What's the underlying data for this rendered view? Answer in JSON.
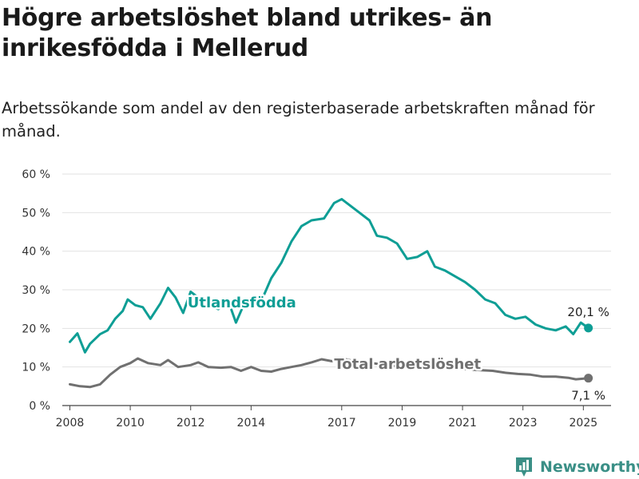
{
  "title": "Högre arbetslöshet bland utrikes- än inrikesfödda i Mellerud",
  "subtitle": "Arbetssökande som andel av den registerbaserade arbetskraften månad för månad.",
  "brand": {
    "name": "Newsworthy",
    "icon": "newsworthy-logo-icon",
    "color": "#3a8f86"
  },
  "chart_data": {
    "type": "line",
    "x_unit": "month",
    "xlim": [
      "2007-10",
      "2025-12"
    ],
    "ylim": [
      0,
      60
    ],
    "grid": "horizontal",
    "legend": "inline-labels",
    "yticks": [
      "0 %",
      "10 %",
      "20 %",
      "30 %",
      "40 %",
      "50 %",
      "60 %"
    ],
    "xticks": [
      "2008",
      "2010",
      "2012",
      "2014",
      "2017",
      "2019",
      "2021",
      "2023",
      "2025"
    ],
    "xtick_dates": [
      "2008-01",
      "2010-01",
      "2012-01",
      "2014-01",
      "2017-01",
      "2019-01",
      "2021-01",
      "2023-01",
      "2025-01"
    ],
    "series": [
      {
        "name": "Utlandsfödda",
        "color": "#0e9e95",
        "end_label": "20,1 %",
        "points": [
          [
            "2008-01",
            16.5
          ],
          [
            "2008-04",
            18.7
          ],
          [
            "2008-07",
            13.8
          ],
          [
            "2008-09",
            16
          ],
          [
            "2009-01",
            18.5
          ],
          [
            "2009-04",
            19.5
          ],
          [
            "2009-07",
            22.5
          ],
          [
            "2009-10",
            24.5
          ],
          [
            "2009-12",
            27.5
          ],
          [
            "2010-03",
            26
          ],
          [
            "2010-06",
            25.5
          ],
          [
            "2010-09",
            22.5
          ],
          [
            "2011-01",
            26.5
          ],
          [
            "2011-04",
            30.5
          ],
          [
            "2011-07",
            28
          ],
          [
            "2011-10",
            24
          ],
          [
            "2012-01",
            29.5
          ],
          [
            "2012-04",
            28
          ],
          [
            "2012-08",
            26
          ],
          [
            "2012-12",
            25
          ],
          [
            "2013-04",
            27
          ],
          [
            "2013-07",
            21.5
          ],
          [
            "2013-10",
            26
          ],
          [
            "2014-01",
            28
          ],
          [
            "2014-05",
            27
          ],
          [
            "2014-09",
            33
          ],
          [
            "2015-01",
            37
          ],
          [
            "2015-05",
            42.5
          ],
          [
            "2015-09",
            46.5
          ],
          [
            "2016-01",
            48
          ],
          [
            "2016-06",
            48.5
          ],
          [
            "2016-10",
            52.5
          ],
          [
            "2017-01",
            53.5
          ],
          [
            "2017-04",
            52
          ],
          [
            "2017-08",
            50
          ],
          [
            "2017-12",
            48
          ],
          [
            "2018-03",
            44
          ],
          [
            "2018-07",
            43.5
          ],
          [
            "2018-11",
            42
          ],
          [
            "2019-03",
            38
          ],
          [
            "2019-07",
            38.5
          ],
          [
            "2019-11",
            40
          ],
          [
            "2020-02",
            36
          ],
          [
            "2020-06",
            35
          ],
          [
            "2020-10",
            33.5
          ],
          [
            "2021-02",
            32
          ],
          [
            "2021-06",
            30
          ],
          [
            "2021-10",
            27.5
          ],
          [
            "2022-02",
            26.5
          ],
          [
            "2022-06",
            23.5
          ],
          [
            "2022-10",
            22.5
          ],
          [
            "2023-02",
            23
          ],
          [
            "2023-06",
            21
          ],
          [
            "2023-10",
            20
          ],
          [
            "2024-02",
            19.5
          ],
          [
            "2024-06",
            20.5
          ],
          [
            "2024-09",
            18.5
          ],
          [
            "2024-12",
            21.5
          ],
          [
            "2025-03",
            20.1
          ]
        ]
      },
      {
        "name": "Total arbetslöshet",
        "color": "#707070",
        "end_label": "7,1 %",
        "points": [
          [
            "2008-01",
            5.5
          ],
          [
            "2008-05",
            5
          ],
          [
            "2008-09",
            4.8
          ],
          [
            "2009-01",
            5.5
          ],
          [
            "2009-05",
            8
          ],
          [
            "2009-09",
            10
          ],
          [
            "2010-01",
            11
          ],
          [
            "2010-04",
            12.2
          ],
          [
            "2010-08",
            11
          ],
          [
            "2011-01",
            10.5
          ],
          [
            "2011-04",
            11.8
          ],
          [
            "2011-08",
            10
          ],
          [
            "2012-01",
            10.5
          ],
          [
            "2012-04",
            11.2
          ],
          [
            "2012-08",
            10
          ],
          [
            "2013-01",
            9.8
          ],
          [
            "2013-05",
            10
          ],
          [
            "2013-09",
            9
          ],
          [
            "2014-01",
            10
          ],
          [
            "2014-05",
            9
          ],
          [
            "2014-09",
            8.8
          ],
          [
            "2015-01",
            9.5
          ],
          [
            "2015-05",
            10
          ],
          [
            "2015-09",
            10.5
          ],
          [
            "2016-01",
            11.2
          ],
          [
            "2016-05",
            12
          ],
          [
            "2016-09",
            11.5
          ],
          [
            "2017-01",
            12.2
          ],
          [
            "2017-06",
            11.5
          ],
          [
            "2018-01",
            11
          ],
          [
            "2018-07",
            10.5
          ],
          [
            "2019-01",
            10
          ],
          [
            "2019-07",
            10.2
          ],
          [
            "2020-01",
            10
          ],
          [
            "2020-07",
            9.8
          ],
          [
            "2021-01",
            9.5
          ],
          [
            "2021-07",
            9.2
          ],
          [
            "2022-01",
            9
          ],
          [
            "2022-06",
            8.5
          ],
          [
            "2022-11",
            8.2
          ],
          [
            "2023-04",
            8
          ],
          [
            "2023-09",
            7.5
          ],
          [
            "2024-02",
            7.5
          ],
          [
            "2024-07",
            7.2
          ],
          [
            "2024-10",
            6.8
          ],
          [
            "2025-03",
            7.1
          ]
        ]
      }
    ]
  }
}
